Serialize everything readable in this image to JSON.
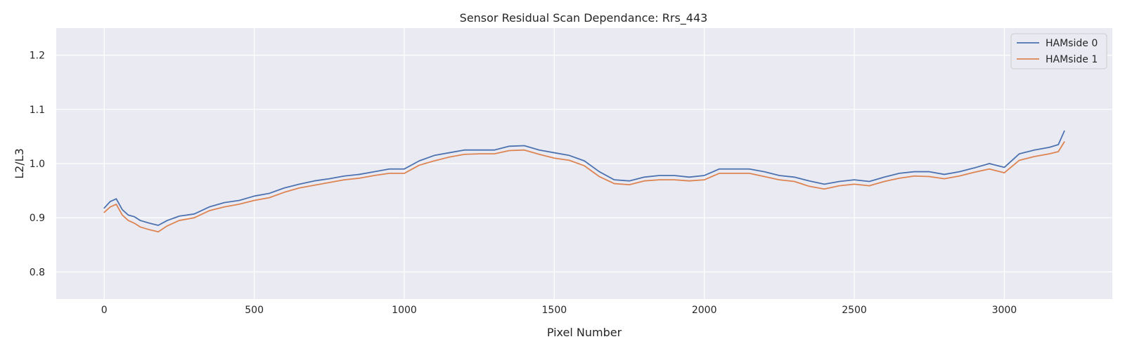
{
  "chart_data": {
    "type": "line",
    "title": "Sensor Residual Scan Dependance: Rrs_443",
    "xlabel": "Pixel Number",
    "ylabel": "L2/L3",
    "xlim": [
      -160,
      3360
    ],
    "ylim": [
      0.75,
      1.25
    ],
    "xticks": [
      0,
      500,
      1000,
      1500,
      2000,
      2500,
      3000
    ],
    "yticks": [
      0.8,
      0.9,
      1.0,
      1.1,
      1.2
    ],
    "xtick_labels": [
      "0",
      "500",
      "1000",
      "1500",
      "2000",
      "2500",
      "3000"
    ],
    "ytick_labels": [
      "0.8",
      "0.9",
      "1.0",
      "1.1",
      "1.2"
    ],
    "grid": true,
    "background": "#eaeaf2",
    "legend_position": "top-right",
    "legend_labels": [
      "HAMside 0",
      "HAMside 1"
    ],
    "series": [
      {
        "name": "HAMside 0",
        "color": "#4c72b0",
        "x": [
          0,
          20,
          40,
          60,
          80,
          100,
          120,
          150,
          180,
          210,
          250,
          300,
          350,
          400,
          450,
          500,
          550,
          600,
          650,
          700,
          750,
          800,
          850,
          900,
          950,
          1000,
          1050,
          1100,
          1150,
          1200,
          1250,
          1300,
          1350,
          1400,
          1450,
          1500,
          1550,
          1600,
          1650,
          1700,
          1750,
          1800,
          1850,
          1900,
          1950,
          2000,
          2050,
          2100,
          2150,
          2200,
          2250,
          2300,
          2350,
          2400,
          2450,
          2500,
          2550,
          2600,
          2650,
          2700,
          2750,
          2800,
          2850,
          2900,
          2950,
          3000,
          3050,
          3100,
          3150,
          3180,
          3200
        ],
        "y": [
          0.918,
          0.93,
          0.935,
          0.915,
          0.905,
          0.902,
          0.895,
          0.89,
          0.886,
          0.895,
          0.903,
          0.907,
          0.92,
          0.928,
          0.932,
          0.94,
          0.945,
          0.955,
          0.962,
          0.968,
          0.972,
          0.977,
          0.98,
          0.985,
          0.99,
          0.99,
          1.005,
          1.015,
          1.02,
          1.025,
          1.025,
          1.025,
          1.032,
          1.033,
          1.025,
          1.02,
          1.015,
          1.005,
          0.985,
          0.97,
          0.968,
          0.975,
          0.978,
          0.978,
          0.975,
          0.978,
          0.99,
          0.99,
          0.99,
          0.985,
          0.978,
          0.975,
          0.968,
          0.962,
          0.967,
          0.97,
          0.967,
          0.975,
          0.982,
          0.985,
          0.985,
          0.98,
          0.985,
          0.992,
          1.0,
          0.993,
          1.018,
          1.025,
          1.03,
          1.035,
          1.06
        ]
      },
      {
        "name": "HAMside 1",
        "color": "#dd8452",
        "x": [
          0,
          20,
          40,
          60,
          80,
          100,
          120,
          150,
          180,
          210,
          250,
          300,
          350,
          400,
          450,
          500,
          550,
          600,
          650,
          700,
          750,
          800,
          850,
          900,
          950,
          1000,
          1050,
          1100,
          1150,
          1200,
          1250,
          1300,
          1350,
          1400,
          1450,
          1500,
          1550,
          1600,
          1650,
          1700,
          1750,
          1800,
          1850,
          1900,
          1950,
          2000,
          2050,
          2100,
          2150,
          2200,
          2250,
          2300,
          2350,
          2400,
          2450,
          2500,
          2550,
          2600,
          2650,
          2700,
          2750,
          2800,
          2850,
          2900,
          2950,
          3000,
          3050,
          3100,
          3150,
          3180,
          3200
        ],
        "y": [
          0.91,
          0.92,
          0.925,
          0.905,
          0.895,
          0.89,
          0.883,
          0.878,
          0.874,
          0.885,
          0.895,
          0.9,
          0.913,
          0.92,
          0.925,
          0.932,
          0.937,
          0.947,
          0.955,
          0.96,
          0.965,
          0.97,
          0.973,
          0.978,
          0.982,
          0.982,
          0.997,
          1.005,
          1.012,
          1.017,
          1.018,
          1.018,
          1.024,
          1.025,
          1.017,
          1.01,
          1.006,
          0.996,
          0.976,
          0.963,
          0.961,
          0.968,
          0.97,
          0.97,
          0.968,
          0.97,
          0.982,
          0.982,
          0.982,
          0.976,
          0.97,
          0.967,
          0.958,
          0.953,
          0.959,
          0.962,
          0.959,
          0.967,
          0.973,
          0.977,
          0.976,
          0.972,
          0.977,
          0.984,
          0.99,
          0.983,
          1.006,
          1.013,
          1.018,
          1.022,
          1.04
        ]
      }
    ]
  }
}
